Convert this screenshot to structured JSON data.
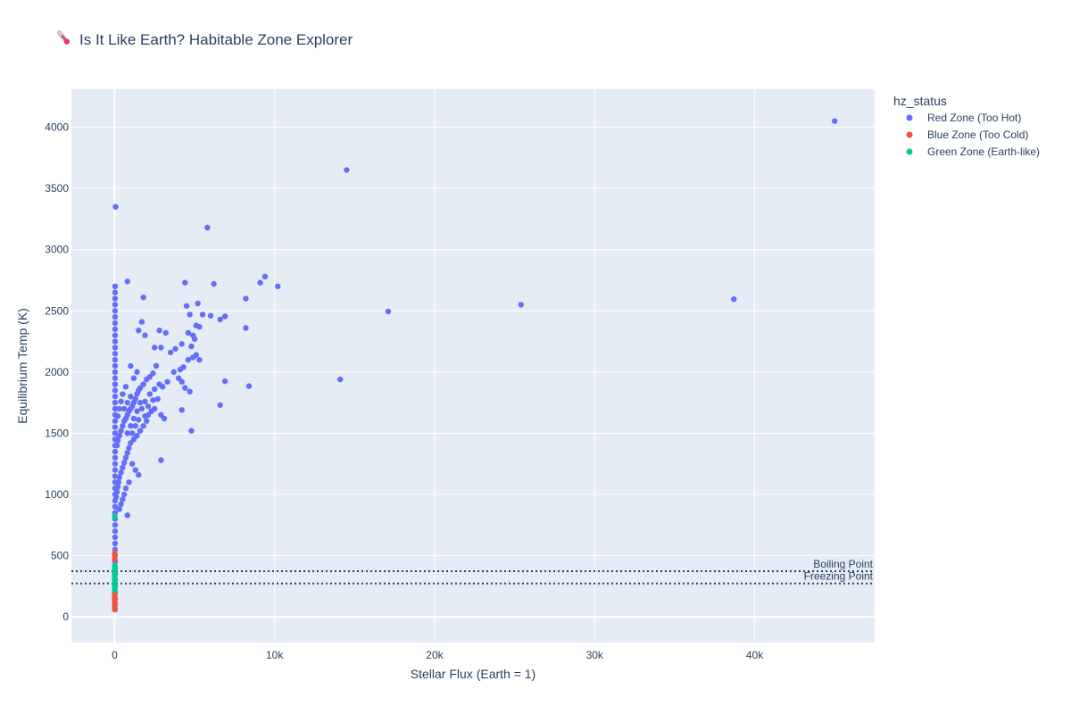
{
  "chart_data": {
    "type": "scatter",
    "title": "Is It Like Earth? Habitable Zone Explorer",
    "title_icon": "thermometer-icon",
    "xlabel": "Stellar Flux (Earth = 1)",
    "ylabel": "Equilibrium Temp (K)",
    "xlim": [
      -2700,
      47500
    ],
    "ylim": [
      -210,
      4310
    ],
    "grid": true,
    "plot_background": "#e5ecf6",
    "legend_position": "right",
    "legend_title": "hz_status",
    "x_ticks": [
      {
        "value": 0,
        "label": "0"
      },
      {
        "value": 10000,
        "label": "10k"
      },
      {
        "value": 20000,
        "label": "20k"
      },
      {
        "value": 30000,
        "label": "30k"
      },
      {
        "value": 40000,
        "label": "40k"
      }
    ],
    "y_ticks": [
      {
        "value": 0,
        "label": "0"
      },
      {
        "value": 500,
        "label": "500"
      },
      {
        "value": 1000,
        "label": "1000"
      },
      {
        "value": 1500,
        "label": "1500"
      },
      {
        "value": 2000,
        "label": "2000"
      },
      {
        "value": 2500,
        "label": "2500"
      },
      {
        "value": 3000,
        "label": "3000"
      },
      {
        "value": 3500,
        "label": "3500"
      },
      {
        "value": 4000,
        "label": "4000"
      }
    ],
    "reference_lines": [
      {
        "label": "Boiling Point",
        "y": 373,
        "color": "#2a3f5f",
        "style": "dotted"
      },
      {
        "label": "Freezing Point",
        "y": 273,
        "color": "#2a3f5f",
        "style": "dotted"
      }
    ],
    "series": [
      {
        "name": "Red Zone (Too Hot)",
        "color": "#636efa",
        "points": [
          [
            45000,
            4050
          ],
          [
            14500,
            3650
          ],
          [
            5800,
            3180
          ],
          [
            60,
            3350
          ],
          [
            9400,
            2780
          ],
          [
            10200,
            2700
          ],
          [
            9100,
            2730
          ],
          [
            6200,
            2720
          ],
          [
            4400,
            2730
          ],
          [
            800,
            2740
          ],
          [
            8200,
            2600
          ],
          [
            38700,
            2595
          ],
          [
            25400,
            2550
          ],
          [
            17100,
            2495
          ],
          [
            1800,
            2610
          ],
          [
            6900,
            2455
          ],
          [
            6600,
            2430
          ],
          [
            5500,
            2470
          ],
          [
            6000,
            2460
          ],
          [
            5200,
            2560
          ],
          [
            4700,
            2470
          ],
          [
            4500,
            2540
          ],
          [
            8200,
            2360
          ],
          [
            5300,
            2370
          ],
          [
            5100,
            2380
          ],
          [
            4900,
            2300
          ],
          [
            5000,
            2270
          ],
          [
            4600,
            2320
          ],
          [
            1700,
            2410
          ],
          [
            1500,
            2340
          ],
          [
            1900,
            2300
          ],
          [
            2800,
            2340
          ],
          [
            3200,
            2320
          ],
          [
            2500,
            2200
          ],
          [
            2900,
            2200
          ],
          [
            3500,
            2160
          ],
          [
            3800,
            2190
          ],
          [
            4200,
            2230
          ],
          [
            4800,
            2210
          ],
          [
            14100,
            1940
          ],
          [
            6900,
            1925
          ],
          [
            8400,
            1885
          ],
          [
            4700,
            1840
          ],
          [
            6600,
            1730
          ],
          [
            4900,
            2120
          ],
          [
            5100,
            2140
          ],
          [
            5300,
            2100
          ],
          [
            4600,
            2100
          ],
          [
            4300,
            2040
          ],
          [
            4100,
            2020
          ],
          [
            3700,
            2000
          ],
          [
            4000,
            1950
          ],
          [
            4200,
            1920
          ],
          [
            4400,
            1870
          ],
          [
            4200,
            1690
          ],
          [
            4800,
            1520
          ],
          [
            2900,
            1280
          ],
          [
            2600,
            2050
          ],
          [
            2400,
            1990
          ],
          [
            2200,
            1960
          ],
          [
            2000,
            1940
          ],
          [
            1800,
            1900
          ],
          [
            1600,
            1870
          ],
          [
            1500,
            1850
          ],
          [
            1400,
            1820
          ],
          [
            1300,
            1780
          ],
          [
            1200,
            1750
          ],
          [
            1100,
            1720
          ],
          [
            1000,
            1700
          ],
          [
            900,
            1680
          ],
          [
            800,
            1650
          ],
          [
            700,
            1620
          ],
          [
            600,
            1600
          ],
          [
            500,
            1560
          ],
          [
            400,
            1520
          ],
          [
            300,
            1480
          ],
          [
            200,
            1440
          ],
          [
            150,
            1400
          ],
          [
            2800,
            1900
          ],
          [
            3000,
            1880
          ],
          [
            3300,
            1920
          ],
          [
            2700,
            1780
          ],
          [
            2500,
            1700
          ],
          [
            2300,
            1680
          ],
          [
            2100,
            1650
          ],
          [
            2900,
            1650
          ],
          [
            3100,
            1620
          ],
          [
            2000,
            1600
          ],
          [
            1800,
            1560
          ],
          [
            1600,
            1520
          ],
          [
            1400,
            1480
          ],
          [
            1200,
            1450
          ],
          [
            1000,
            1420
          ],
          [
            900,
            1380
          ],
          [
            800,
            1340
          ],
          [
            700,
            1300
          ],
          [
            600,
            1260
          ],
          [
            500,
            1220
          ],
          [
            400,
            1180
          ],
          [
            300,
            1140
          ],
          [
            250,
            1100
          ],
          [
            200,
            1060
          ],
          [
            150,
            1020
          ],
          [
            100,
            980
          ],
          [
            1300,
            1200
          ],
          [
            1500,
            1160
          ],
          [
            1100,
            1250
          ],
          [
            900,
            1100
          ],
          [
            700,
            1050
          ],
          [
            600,
            1000
          ],
          [
            500,
            960
          ],
          [
            400,
            920
          ],
          [
            300,
            880
          ],
          [
            800,
            830
          ],
          [
            2200,
            1820
          ],
          [
            2500,
            1860
          ],
          [
            1900,
            1760
          ],
          [
            1700,
            1700
          ],
          [
            1900,
            1640
          ],
          [
            1300,
            1560
          ],
          [
            1100,
            1500
          ],
          [
            1500,
            1610
          ],
          [
            2100,
            1720
          ],
          [
            2400,
            1770
          ],
          [
            1000,
            1800
          ],
          [
            800,
            1750
          ],
          [
            600,
            1700
          ],
          [
            1200,
            1950
          ],
          [
            1400,
            2000
          ],
          [
            1000,
            2050
          ],
          [
            700,
            1880
          ],
          [
            500,
            1820
          ],
          [
            400,
            1760
          ],
          [
            300,
            1700
          ],
          [
            200,
            1640
          ],
          [
            1600,
            1750
          ],
          [
            1400,
            1680
          ],
          [
            1200,
            1620
          ],
          [
            1000,
            1560
          ],
          [
            800,
            1500
          ],
          [
            30,
            2700
          ],
          [
            30,
            2650
          ],
          [
            30,
            2600
          ],
          [
            30,
            2550
          ],
          [
            30,
            2500
          ],
          [
            30,
            2450
          ],
          [
            30,
            2400
          ],
          [
            30,
            2350
          ],
          [
            30,
            2300
          ],
          [
            30,
            2250
          ],
          [
            30,
            2200
          ],
          [
            30,
            2150
          ],
          [
            30,
            2100
          ],
          [
            30,
            2050
          ],
          [
            30,
            2000
          ],
          [
            30,
            1950
          ],
          [
            30,
            1900
          ],
          [
            30,
            1850
          ],
          [
            30,
            1800
          ],
          [
            30,
            1750
          ],
          [
            30,
            1700
          ],
          [
            30,
            1650
          ],
          [
            30,
            1600
          ],
          [
            30,
            1550
          ],
          [
            30,
            1500
          ],
          [
            30,
            1450
          ],
          [
            30,
            1400
          ],
          [
            30,
            1350
          ],
          [
            30,
            1300
          ],
          [
            30,
            1250
          ],
          [
            30,
            1200
          ],
          [
            30,
            1150
          ],
          [
            30,
            1100
          ],
          [
            30,
            1050
          ],
          [
            30,
            1000
          ],
          [
            30,
            950
          ],
          [
            30,
            900
          ],
          [
            30,
            850
          ],
          [
            30,
            800
          ],
          [
            30,
            750
          ],
          [
            30,
            700
          ],
          [
            30,
            650
          ],
          [
            30,
            600
          ],
          [
            30,
            550
          ],
          [
            30,
            500
          ],
          [
            30,
            450
          ],
          [
            30,
            400
          ],
          [
            30,
            350
          ],
          [
            30,
            300
          ],
          [
            30,
            250
          ],
          [
            30,
            200
          ],
          [
            30,
            150
          ],
          [
            30,
            100
          ],
          [
            30,
            60
          ]
        ]
      },
      {
        "name": "Blue Zone (Too Cold)",
        "color": "#ef553b",
        "points": [
          [
            10,
            520
          ],
          [
            10,
            500
          ],
          [
            10,
            470
          ],
          [
            10,
            200
          ],
          [
            10,
            180
          ],
          [
            10,
            160
          ],
          [
            10,
            140
          ],
          [
            10,
            120
          ],
          [
            10,
            100
          ],
          [
            10,
            80
          ],
          [
            10,
            60
          ]
        ]
      },
      {
        "name": "Green Zone (Earth-like)",
        "color": "#00cc96",
        "points": [
          [
            10,
            820
          ],
          [
            10,
            420
          ],
          [
            10,
            400
          ],
          [
            10,
            380
          ],
          [
            10,
            360
          ],
          [
            10,
            340
          ],
          [
            10,
            320
          ],
          [
            10,
            300
          ],
          [
            10,
            280
          ],
          [
            10,
            260
          ],
          [
            10,
            240
          ],
          [
            10,
            220
          ]
        ]
      }
    ]
  }
}
